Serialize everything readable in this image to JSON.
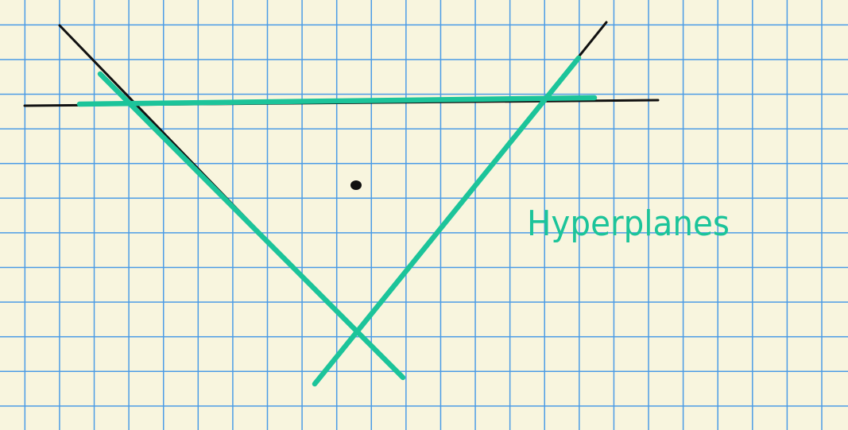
{
  "diagram": {
    "label": "Hyperplanes",
    "colors": {
      "background": "#f8f5de",
      "grid": "#4a9be6",
      "ink": "#111111",
      "hyperplane": "#1cc49a"
    }
  }
}
